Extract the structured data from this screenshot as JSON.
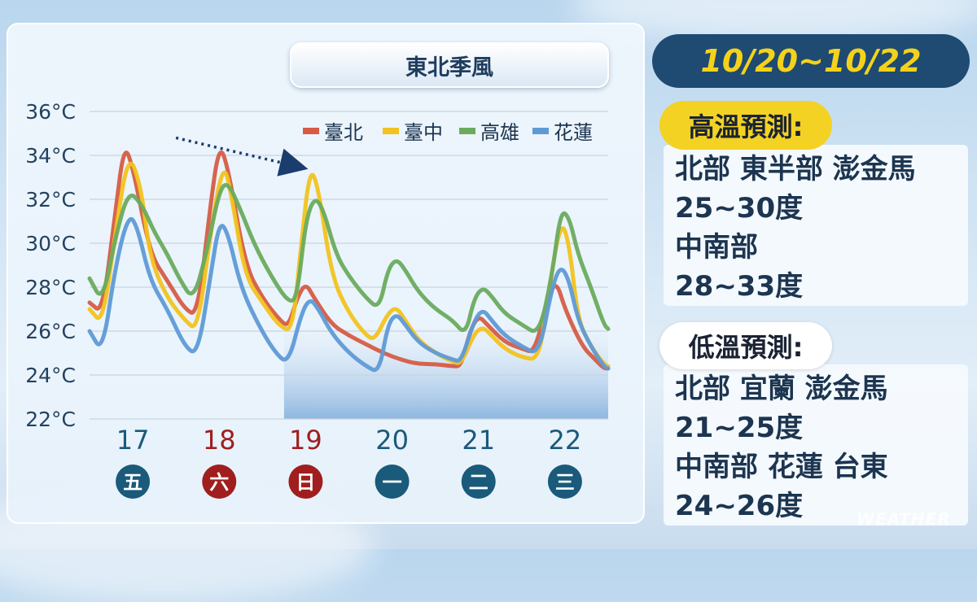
{
  "panel": {
    "title": "東北季風"
  },
  "chart_data": {
    "type": "line",
    "y_unit_suffix": "°C",
    "ylim": [
      22,
      36
    ],
    "yticks": [
      22,
      24,
      26,
      28,
      30,
      32,
      34,
      36
    ],
    "grid": true,
    "legend_placement": "top-right",
    "x_range": [
      16.5,
      22.5
    ],
    "day_labels": [
      {
        "date": "17",
        "weekday": "五",
        "color": "#1a5a7a",
        "date_color": "#1a5a7a"
      },
      {
        "date": "18",
        "weekday": "六",
        "color": "#a01e1e",
        "date_color": "#a01e1e"
      },
      {
        "date": "19",
        "weekday": "日",
        "color": "#a01e1e",
        "date_color": "#a01e1e"
      },
      {
        "date": "20",
        "weekday": "一",
        "color": "#1a5a7a",
        "date_color": "#1a5a7a"
      },
      {
        "date": "21",
        "weekday": "二",
        "color": "#1a5a7a",
        "date_color": "#1a5a7a"
      },
      {
        "date": "22",
        "weekday": "三",
        "color": "#1a5a7a",
        "date_color": "#1a5a7a"
      }
    ],
    "forecast_shade_from_x": 18.75,
    "trend_arrow": {
      "from": [
        17.5,
        34.8
      ],
      "to": [
        18.9,
        33.5
      ]
    },
    "series": [
      {
        "name": "臺北",
        "color": "#d65c45",
        "points": [
          [
            16.5,
            27.3
          ],
          [
            16.65,
            26.8
          ],
          [
            16.8,
            31.5
          ],
          [
            16.9,
            34.5
          ],
          [
            17.0,
            33.5
          ],
          [
            17.2,
            29.5
          ],
          [
            17.4,
            28.3
          ],
          [
            17.6,
            27.0
          ],
          [
            17.75,
            26.7
          ],
          [
            17.9,
            31.8
          ],
          [
            18.0,
            34.5
          ],
          [
            18.1,
            33.5
          ],
          [
            18.3,
            29.0
          ],
          [
            18.5,
            27.5
          ],
          [
            18.7,
            26.5
          ],
          [
            18.8,
            26.2
          ],
          [
            18.9,
            27.5
          ],
          [
            19.0,
            28.2
          ],
          [
            19.1,
            27.5
          ],
          [
            19.3,
            26.3
          ],
          [
            19.5,
            25.8
          ],
          [
            19.7,
            25.4
          ],
          [
            19.9,
            25.0
          ],
          [
            20.1,
            24.7
          ],
          [
            20.3,
            24.5
          ],
          [
            20.5,
            24.5
          ],
          [
            20.7,
            24.4
          ],
          [
            20.8,
            24.4
          ],
          [
            20.9,
            26.0
          ],
          [
            21.0,
            26.7
          ],
          [
            21.1,
            26.3
          ],
          [
            21.3,
            25.5
          ],
          [
            21.5,
            25.2
          ],
          [
            21.65,
            25.0
          ],
          [
            21.8,
            27.5
          ],
          [
            21.9,
            28.3
          ],
          [
            22.0,
            27.0
          ],
          [
            22.2,
            25.3
          ],
          [
            22.35,
            24.7
          ],
          [
            22.45,
            24.3
          ],
          [
            22.5,
            24.3
          ]
        ]
      },
      {
        "name": "臺中",
        "color": "#f2c31e",
        "points": [
          [
            16.5,
            27.0
          ],
          [
            16.65,
            26.3
          ],
          [
            16.8,
            30.5
          ],
          [
            16.95,
            34.2
          ],
          [
            17.1,
            32.5
          ],
          [
            17.2,
            29.3
          ],
          [
            17.4,
            27.5
          ],
          [
            17.6,
            26.5
          ],
          [
            17.75,
            26.0
          ],
          [
            17.9,
            30.5
          ],
          [
            18.05,
            33.8
          ],
          [
            18.15,
            32.0
          ],
          [
            18.3,
            28.5
          ],
          [
            18.5,
            27.3
          ],
          [
            18.7,
            26.2
          ],
          [
            18.85,
            26.0
          ],
          [
            18.95,
            30.0
          ],
          [
            19.05,
            33.5
          ],
          [
            19.15,
            32.5
          ],
          [
            19.3,
            28.5
          ],
          [
            19.5,
            26.8
          ],
          [
            19.7,
            25.8
          ],
          [
            19.8,
            25.6
          ],
          [
            19.95,
            26.8
          ],
          [
            20.05,
            27.1
          ],
          [
            20.15,
            26.5
          ],
          [
            20.3,
            25.6
          ],
          [
            20.5,
            25.0
          ],
          [
            20.7,
            24.6
          ],
          [
            20.8,
            24.5
          ],
          [
            20.95,
            25.9
          ],
          [
            21.05,
            26.2
          ],
          [
            21.15,
            25.8
          ],
          [
            21.3,
            25.2
          ],
          [
            21.5,
            24.8
          ],
          [
            21.7,
            24.7
          ],
          [
            21.8,
            27.5
          ],
          [
            21.95,
            31.1
          ],
          [
            22.05,
            30.0
          ],
          [
            22.15,
            26.5
          ],
          [
            22.3,
            25.3
          ],
          [
            22.45,
            24.5
          ],
          [
            22.5,
            24.4
          ]
        ]
      },
      {
        "name": "高雄",
        "color": "#6aab5e",
        "points": [
          [
            16.5,
            28.4
          ],
          [
            16.65,
            27.3
          ],
          [
            16.8,
            30.3
          ],
          [
            16.95,
            32.4
          ],
          [
            17.1,
            31.8
          ],
          [
            17.25,
            30.5
          ],
          [
            17.4,
            29.5
          ],
          [
            17.55,
            28.3
          ],
          [
            17.7,
            27.4
          ],
          [
            17.85,
            29.5
          ],
          [
            18.0,
            32.4
          ],
          [
            18.1,
            32.8
          ],
          [
            18.25,
            31.5
          ],
          [
            18.4,
            30.0
          ],
          [
            18.6,
            28.5
          ],
          [
            18.8,
            27.3
          ],
          [
            18.9,
            27.5
          ],
          [
            19.0,
            31.0
          ],
          [
            19.1,
            32.1
          ],
          [
            19.2,
            31.6
          ],
          [
            19.35,
            29.5
          ],
          [
            19.5,
            28.5
          ],
          [
            19.7,
            27.5
          ],
          [
            19.85,
            27.0
          ],
          [
            19.95,
            28.8
          ],
          [
            20.05,
            29.3
          ],
          [
            20.15,
            28.8
          ],
          [
            20.3,
            27.8
          ],
          [
            20.5,
            27.0
          ],
          [
            20.7,
            26.5
          ],
          [
            20.85,
            25.8
          ],
          [
            20.95,
            27.5
          ],
          [
            21.05,
            28.0
          ],
          [
            21.15,
            27.6
          ],
          [
            21.3,
            26.8
          ],
          [
            21.5,
            26.3
          ],
          [
            21.7,
            25.8
          ],
          [
            21.85,
            28.5
          ],
          [
            21.95,
            31.5
          ],
          [
            22.05,
            31.2
          ],
          [
            22.15,
            29.5
          ],
          [
            22.3,
            28.0
          ],
          [
            22.45,
            26.3
          ],
          [
            22.5,
            26.1
          ]
        ]
      },
      {
        "name": "花蓮",
        "color": "#5f9ad6",
        "points": [
          [
            16.5,
            26.0
          ],
          [
            16.65,
            25.0
          ],
          [
            16.8,
            29.0
          ],
          [
            16.95,
            31.3
          ],
          [
            17.05,
            30.8
          ],
          [
            17.2,
            28.3
          ],
          [
            17.4,
            27.0
          ],
          [
            17.6,
            25.3
          ],
          [
            17.75,
            24.9
          ],
          [
            17.9,
            28.5
          ],
          [
            18.0,
            31.0
          ],
          [
            18.1,
            30.5
          ],
          [
            18.25,
            28.0
          ],
          [
            18.45,
            26.3
          ],
          [
            18.65,
            25.0
          ],
          [
            18.8,
            24.5
          ],
          [
            18.95,
            26.8
          ],
          [
            19.05,
            27.5
          ],
          [
            19.15,
            27.0
          ],
          [
            19.3,
            25.9
          ],
          [
            19.5,
            25.0
          ],
          [
            19.7,
            24.4
          ],
          [
            19.85,
            24.1
          ],
          [
            19.95,
            26.3
          ],
          [
            20.05,
            26.8
          ],
          [
            20.15,
            26.3
          ],
          [
            20.3,
            25.5
          ],
          [
            20.5,
            25.0
          ],
          [
            20.7,
            24.7
          ],
          [
            20.8,
            24.6
          ],
          [
            20.95,
            26.5
          ],
          [
            21.05,
            27.0
          ],
          [
            21.15,
            26.5
          ],
          [
            21.3,
            25.8
          ],
          [
            21.5,
            25.3
          ],
          [
            21.7,
            24.9
          ],
          [
            21.85,
            28.0
          ],
          [
            21.95,
            29.0
          ],
          [
            22.05,
            28.3
          ],
          [
            22.15,
            26.5
          ],
          [
            22.3,
            25.3
          ],
          [
            22.45,
            24.4
          ],
          [
            22.5,
            24.3
          ]
        ]
      }
    ]
  },
  "side": {
    "date_range": "10/20~10/22",
    "high": {
      "tag": "高溫預測:",
      "lines": [
        "北部  東半部  澎金馬",
        "25~30度",
        "中南部",
        "28~33度"
      ]
    },
    "low": {
      "tag": "低溫預測:",
      "lines": [
        "北部  宜蘭  澎金馬",
        "21~25度",
        "中南部  花蓮  台東",
        "24~26度"
      ]
    }
  },
  "watermark": "WEATHER"
}
